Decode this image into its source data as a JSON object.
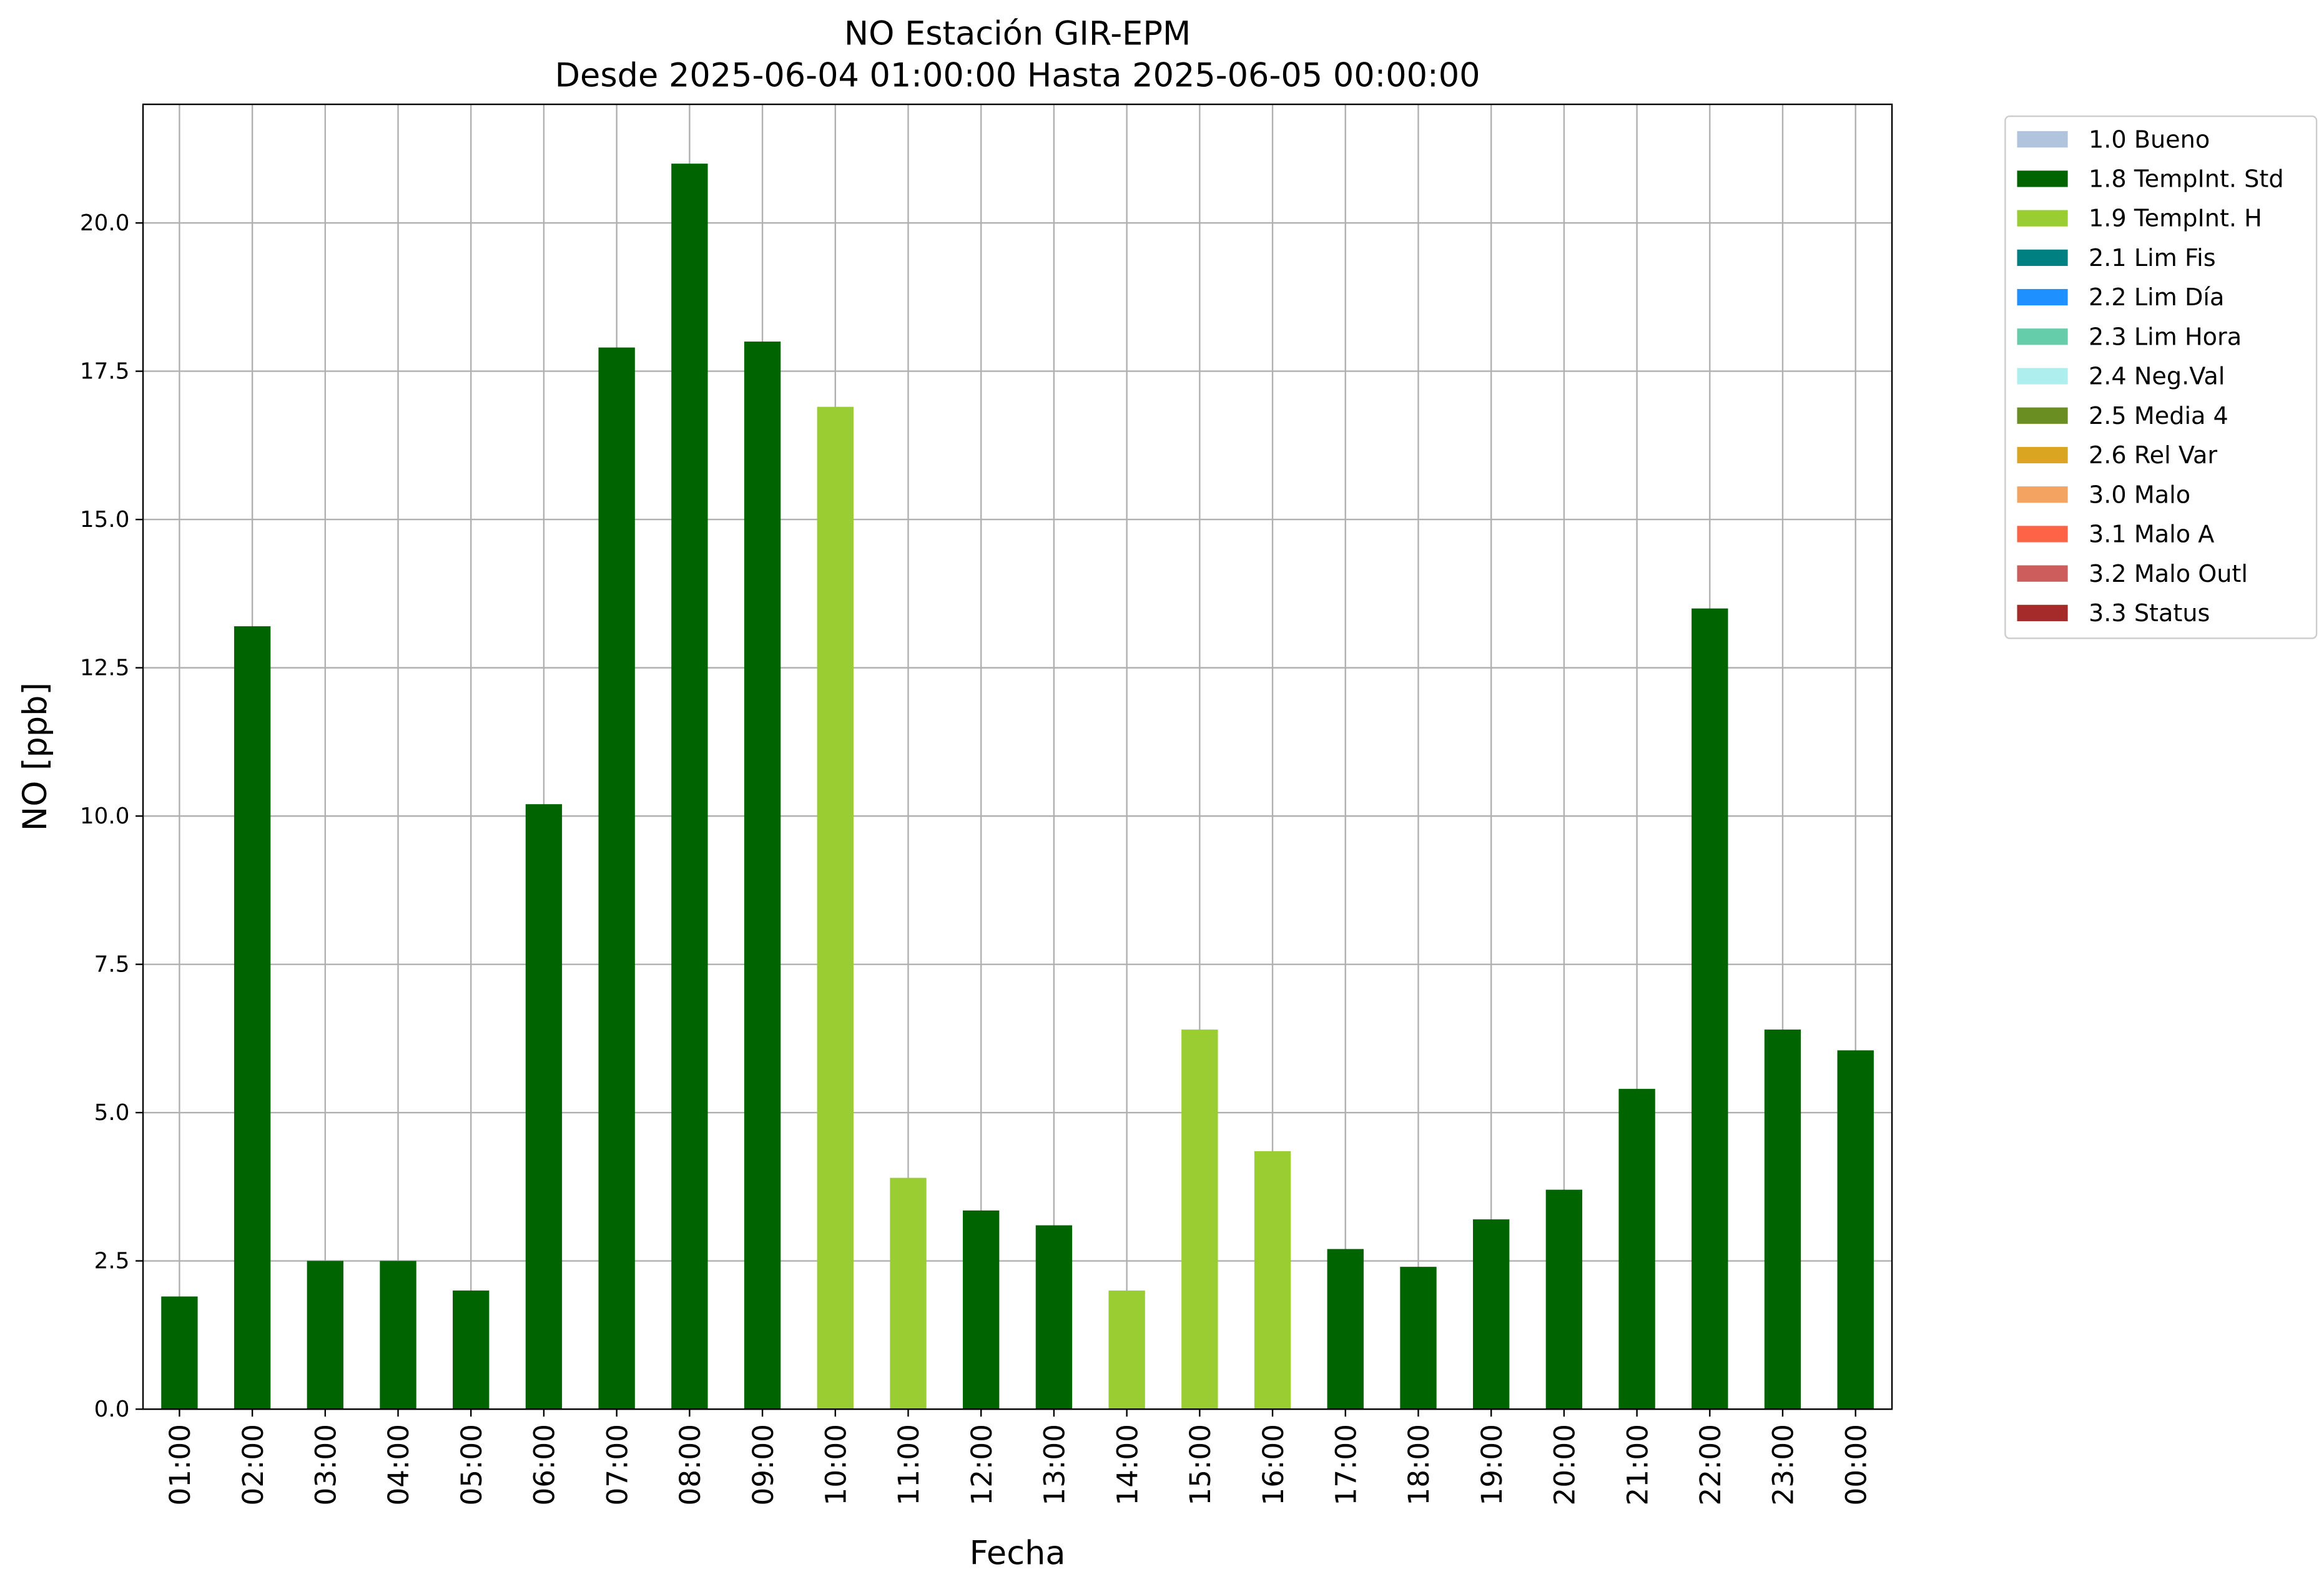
{
  "chart_data": {
    "type": "stacked-bar",
    "title": "NO Estación GIR-EPM",
    "subtitle": "Desde 2025-06-04 01:00:00 Hasta 2025-06-05 00:00:00",
    "x_label": "Fecha",
    "y_label": "NO [ppb]",
    "categories": [
      "01:00",
      "02:00",
      "03:00",
      "04:00",
      "05:00",
      "06:00",
      "07:00",
      "08:00",
      "09:00",
      "10:00",
      "11:00",
      "12:00",
      "13:00",
      "14:00",
      "15:00",
      "16:00",
      "17:00",
      "18:00",
      "19:00",
      "20:00",
      "21:00",
      "22:00",
      "23:00",
      "00:00"
    ],
    "series": [
      {
        "name": "1.0 Bueno",
        "color": "#b0c4de",
        "values": [
          null,
          null,
          null,
          null,
          null,
          null,
          null,
          null,
          null,
          null,
          null,
          null,
          null,
          null,
          null,
          null,
          null,
          null,
          null,
          null,
          null,
          null,
          null,
          null
        ]
      },
      {
        "name": "1.8 TempInt. Std",
        "color": "#006400",
        "values": [
          1.9,
          13.2,
          2.5,
          2.5,
          2.0,
          10.2,
          17.9,
          21.0,
          18.0,
          null,
          null,
          3.35,
          3.1,
          null,
          null,
          null,
          2.7,
          2.4,
          3.2,
          3.7,
          5.4,
          13.5,
          6.4,
          6.05
        ]
      },
      {
        "name": "1.9 TempInt. H",
        "color": "#9acd32",
        "values": [
          null,
          null,
          null,
          null,
          null,
          null,
          null,
          null,
          null,
          16.9,
          3.9,
          null,
          null,
          2.0,
          6.4,
          4.35,
          null,
          null,
          null,
          null,
          null,
          null,
          null,
          null
        ]
      },
      {
        "name": "2.1 Lim Fis",
        "color": "#008080",
        "values": [
          null,
          null,
          null,
          null,
          null,
          null,
          null,
          null,
          null,
          null,
          null,
          null,
          null,
          null,
          null,
          null,
          null,
          null,
          null,
          null,
          null,
          null,
          null,
          null
        ]
      },
      {
        "name": "2.2 Lim Día",
        "color": "#1e90ff",
        "values": [
          null,
          null,
          null,
          null,
          null,
          null,
          null,
          null,
          null,
          null,
          null,
          null,
          null,
          null,
          null,
          null,
          null,
          null,
          null,
          null,
          null,
          null,
          null,
          null
        ]
      },
      {
        "name": "2.3 Lim Hora",
        "color": "#66cdaa",
        "values": [
          null,
          null,
          null,
          null,
          null,
          null,
          null,
          null,
          null,
          null,
          null,
          null,
          null,
          null,
          null,
          null,
          null,
          null,
          null,
          null,
          null,
          null,
          null,
          null
        ]
      },
      {
        "name": "2.4 Neg.Val",
        "color": "#afeeee",
        "values": [
          null,
          null,
          null,
          null,
          null,
          null,
          null,
          null,
          null,
          null,
          null,
          null,
          null,
          null,
          null,
          null,
          null,
          null,
          null,
          null,
          null,
          null,
          null,
          null
        ]
      },
      {
        "name": "2.5 Media 4",
        "color": "#6b8e23",
        "values": [
          null,
          null,
          null,
          null,
          null,
          null,
          null,
          null,
          null,
          null,
          null,
          null,
          null,
          null,
          null,
          null,
          null,
          null,
          null,
          null,
          null,
          null,
          null,
          null
        ]
      },
      {
        "name": "2.6 Rel Var",
        "color": "#daa520",
        "values": [
          null,
          null,
          null,
          null,
          null,
          null,
          null,
          null,
          null,
          null,
          null,
          null,
          null,
          null,
          null,
          null,
          null,
          null,
          null,
          null,
          null,
          null,
          null,
          null
        ]
      },
      {
        "name": "3.0 Malo",
        "color": "#f4a460",
        "values": [
          null,
          null,
          null,
          null,
          null,
          null,
          null,
          null,
          null,
          null,
          null,
          null,
          null,
          null,
          null,
          null,
          null,
          null,
          null,
          null,
          null,
          null,
          null,
          null
        ]
      },
      {
        "name": "3.1 Malo A",
        "color": "#ff6347",
        "values": [
          null,
          null,
          null,
          null,
          null,
          null,
          null,
          null,
          null,
          null,
          null,
          null,
          null,
          null,
          null,
          null,
          null,
          null,
          null,
          null,
          null,
          null,
          null,
          null
        ]
      },
      {
        "name": "3.2 Malo Outl",
        "color": "#cd5c5c",
        "values": [
          null,
          null,
          null,
          null,
          null,
          null,
          null,
          null,
          null,
          null,
          null,
          null,
          null,
          null,
          null,
          null,
          null,
          null,
          null,
          null,
          null,
          null,
          null,
          null
        ]
      },
      {
        "name": "3.3 Status",
        "color": "#a52a2a",
        "values": [
          null,
          null,
          null,
          null,
          null,
          null,
          null,
          null,
          null,
          null,
          null,
          null,
          null,
          null,
          null,
          null,
          null,
          null,
          null,
          null,
          null,
          null,
          null,
          null
        ]
      }
    ],
    "ylim": [
      0,
      22
    ],
    "yticks": [
      {
        "value": 0,
        "label": "0.0"
      },
      {
        "value": 2.5,
        "label": "2.5"
      },
      {
        "value": 5,
        "label": "5.0"
      },
      {
        "value": 7.5,
        "label": "7.5"
      },
      {
        "value": 10,
        "label": "10.0"
      },
      {
        "value": 12.5,
        "label": "12.5"
      },
      {
        "value": 15,
        "label": "15.0"
      },
      {
        "value": 17.5,
        "label": "17.5"
      },
      {
        "value": 20,
        "label": "20.0"
      }
    ],
    "grid": true,
    "legend_position": "outside-upper-right"
  }
}
